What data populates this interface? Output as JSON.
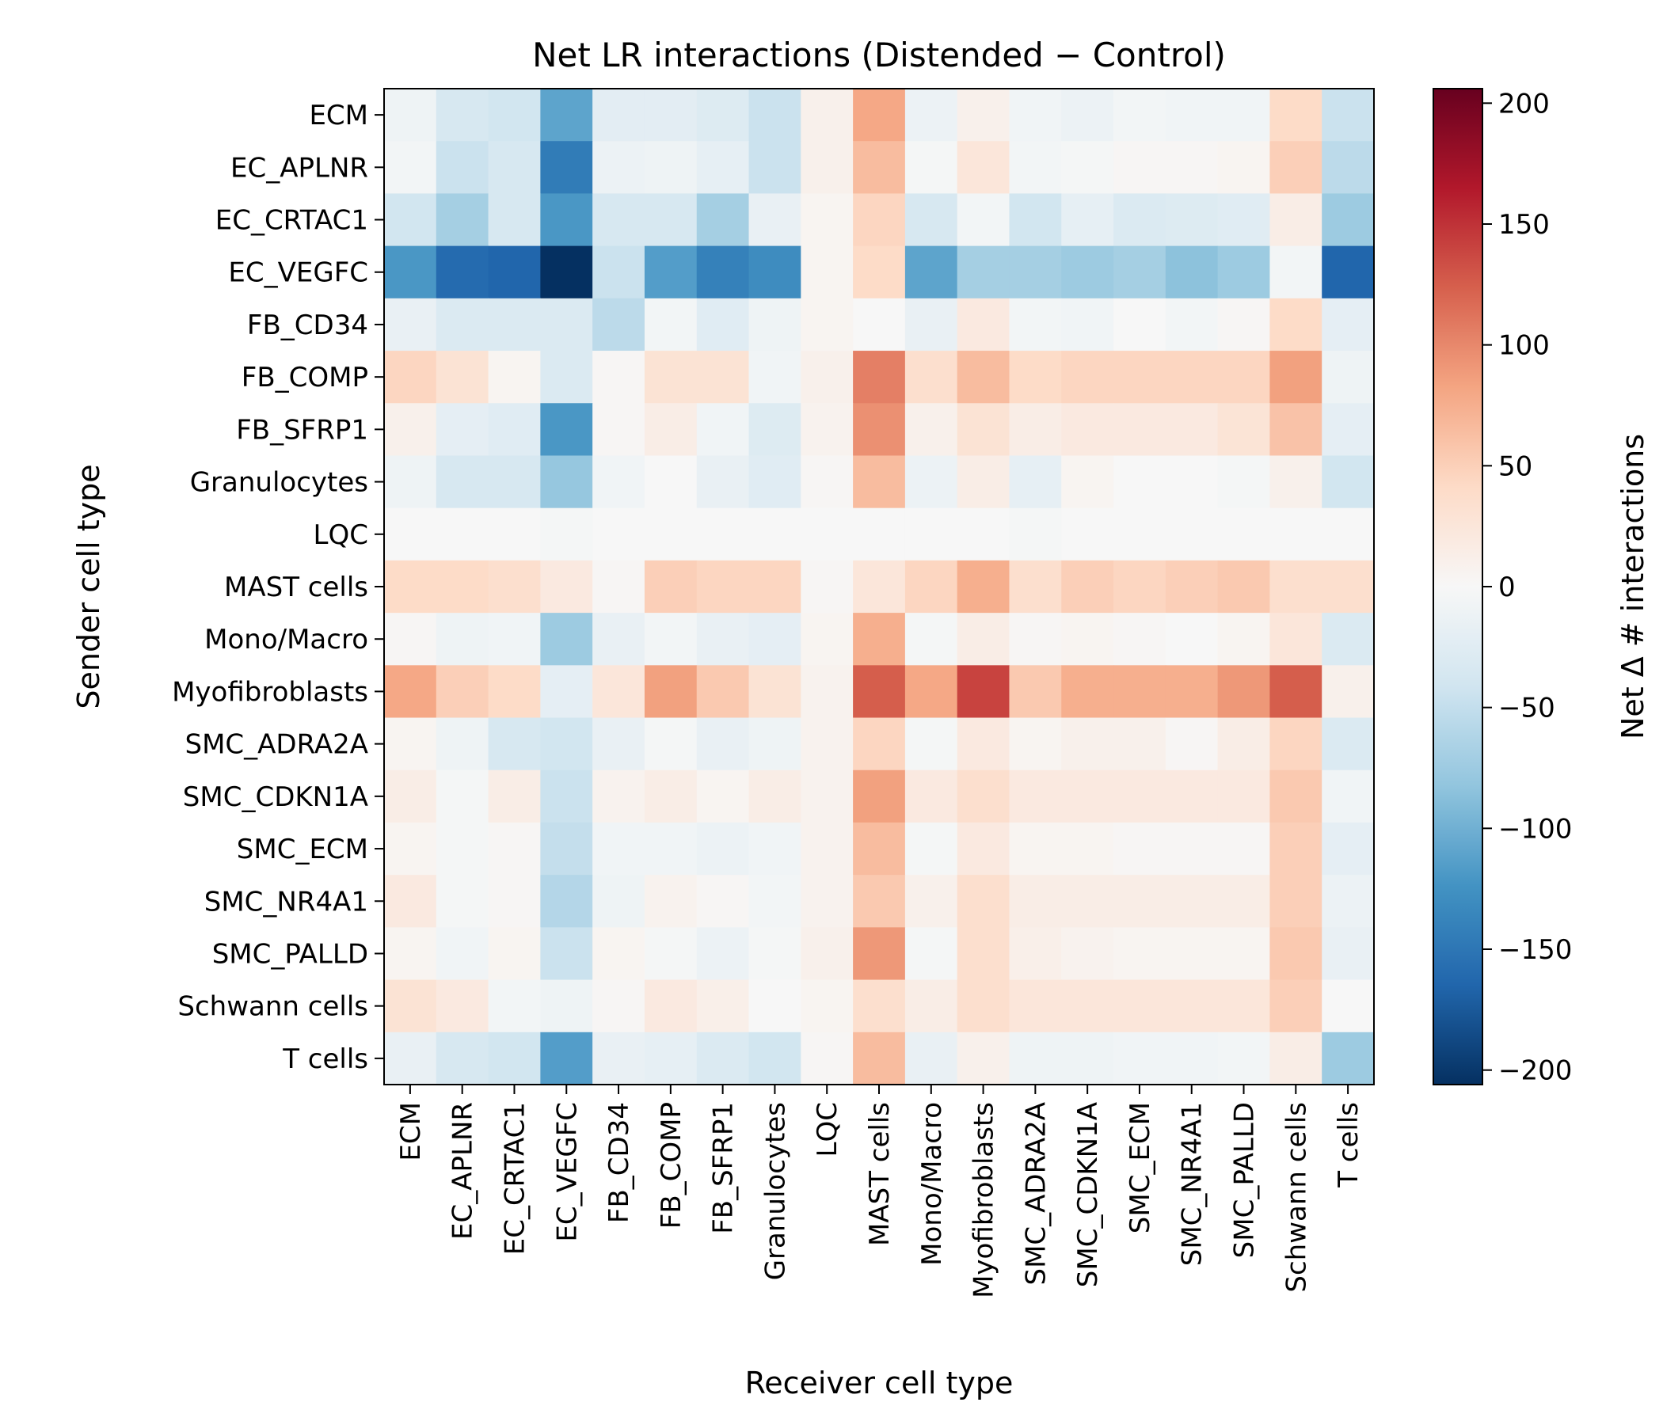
{
  "chart_data": {
    "type": "heatmap",
    "title": "Net LR interactions (Distended − Control)",
    "xlabel": "Receiver cell type",
    "ylabel": "Sender cell type",
    "colorbar_label": "Net Δ # interactions",
    "colormap": "RdBu_r",
    "vmin": -206,
    "vmax": 206,
    "colorbar_ticks": [
      200,
      150,
      100,
      50,
      0,
      -50,
      -100,
      -150,
      -200
    ],
    "colorbar_tick_labels": [
      "200",
      "150",
      "100",
      "50",
      "0",
      "−50",
      "−100",
      "−150",
      "−200"
    ],
    "x_categories": [
      "ECM",
      "EC_APLNR",
      "EC_CRTAC1",
      "EC_VEGFC",
      "FB_CD34",
      "FB_COMP",
      "FB_SFRP1",
      "Granulocytes",
      "LQC",
      "MAST cells",
      "Mono/Macro",
      "Myofibroblasts",
      "SMC_ADRA2A",
      "SMC_CDKN1A",
      "SMC_ECM",
      "SMC_NR4A1",
      "SMC_PALLD",
      "Schwann cells",
      "T cells"
    ],
    "y_categories": [
      "ECM",
      "EC_APLNR",
      "EC_CRTAC1",
      "EC_VEGFC",
      "FB_CD34",
      "FB_COMP",
      "FB_SFRP1",
      "Granulocytes",
      "LQC",
      "MAST cells",
      "Mono/Macro",
      "Myofibroblasts",
      "SMC_ADRA2A",
      "SMC_CDKN1A",
      "SMC_ECM",
      "SMC_NR4A1",
      "SMC_PALLD",
      "Schwann cells",
      "T cells"
    ],
    "values": [
      [
        -10,
        -35,
        -40,
        -110,
        -22,
        -22,
        -28,
        -45,
        10,
        80,
        -12,
        10,
        -8,
        -12,
        -5,
        -8,
        -8,
        40,
        -45
      ],
      [
        -5,
        -45,
        -35,
        -145,
        -12,
        -10,
        -18,
        -45,
        10,
        65,
        -3,
        25,
        -5,
        -3,
        3,
        3,
        5,
        50,
        -55
      ],
      [
        -40,
        -70,
        -35,
        -120,
        -35,
        -35,
        -70,
        -15,
        5,
        45,
        -35,
        -5,
        -40,
        -18,
        -30,
        -28,
        -25,
        15,
        -75
      ],
      [
        -120,
        -160,
        -165,
        -206,
        -45,
        -115,
        -140,
        -130,
        5,
        40,
        -110,
        -70,
        -70,
        -75,
        -70,
        -85,
        -75,
        -5,
        -165
      ],
      [
        -15,
        -30,
        -30,
        -30,
        -55,
        -5,
        -25,
        -10,
        5,
        0,
        -15,
        20,
        -5,
        -8,
        0,
        -5,
        3,
        40,
        -20
      ],
      [
        45,
        30,
        5,
        -30,
        3,
        30,
        30,
        -8,
        10,
        105,
        35,
        65,
        40,
        45,
        45,
        45,
        45,
        85,
        -10
      ],
      [
        10,
        -20,
        -25,
        -120,
        3,
        15,
        -8,
        -28,
        8,
        95,
        10,
        30,
        15,
        20,
        20,
        20,
        28,
        60,
        -20
      ],
      [
        -10,
        -35,
        -35,
        -80,
        -8,
        0,
        -15,
        -25,
        3,
        65,
        -12,
        15,
        -18,
        5,
        0,
        0,
        -3,
        10,
        -40
      ],
      [
        0,
        0,
        0,
        -3,
        0,
        0,
        0,
        0,
        0,
        0,
        0,
        0,
        -3,
        0,
        0,
        0,
        0,
        0,
        0
      ],
      [
        40,
        40,
        35,
        20,
        3,
        50,
        45,
        45,
        3,
        25,
        45,
        75,
        35,
        50,
        45,
        50,
        55,
        35,
        35
      ],
      [
        3,
        -10,
        -8,
        -75,
        -15,
        -5,
        -15,
        -20,
        5,
        75,
        -3,
        15,
        3,
        5,
        3,
        0,
        5,
        25,
        -30
      ],
      [
        80,
        50,
        40,
        -20,
        25,
        85,
        55,
        30,
        8,
        125,
        80,
        140,
        55,
        75,
        75,
        75,
        90,
        125,
        10
      ],
      [
        5,
        -10,
        -35,
        -40,
        -15,
        -3,
        -15,
        -10,
        8,
        45,
        -3,
        20,
        5,
        10,
        10,
        3,
        15,
        45,
        -30
      ],
      [
        15,
        -3,
        15,
        -45,
        8,
        15,
        5,
        15,
        8,
        85,
        20,
        35,
        20,
        20,
        20,
        20,
        20,
        55,
        -8
      ],
      [
        5,
        -3,
        3,
        -50,
        -8,
        -8,
        -12,
        -8,
        8,
        65,
        -3,
        20,
        5,
        5,
        3,
        3,
        3,
        50,
        -20
      ],
      [
        20,
        -3,
        3,
        -60,
        -10,
        8,
        3,
        -5,
        8,
        55,
        10,
        35,
        15,
        15,
        15,
        15,
        15,
        50,
        -12
      ],
      [
        5,
        -8,
        5,
        -45,
        5,
        -3,
        -12,
        -3,
        10,
        90,
        -3,
        35,
        12,
        8,
        5,
        5,
        5,
        55,
        -15
      ],
      [
        30,
        20,
        -5,
        -10,
        3,
        20,
        12,
        0,
        5,
        35,
        15,
        35,
        25,
        25,
        25,
        25,
        25,
        50,
        0
      ],
      [
        -15,
        -35,
        -40,
        -115,
        -15,
        -18,
        -30,
        -40,
        3,
        65,
        -15,
        10,
        -10,
        -10,
        -8,
        -8,
        -5,
        15,
        -75
      ]
    ]
  }
}
